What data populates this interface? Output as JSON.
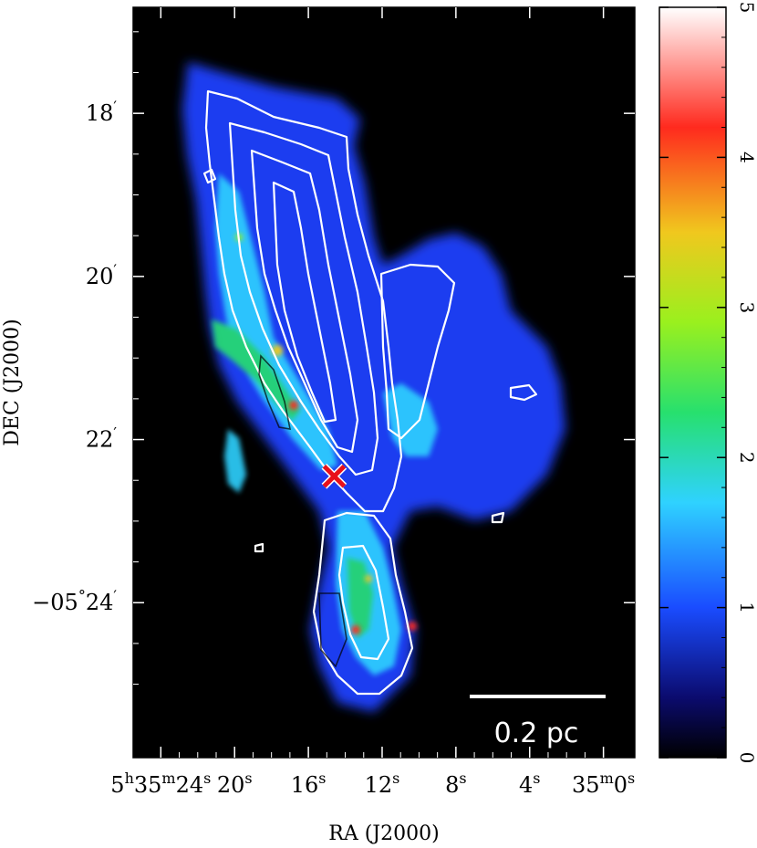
{
  "chart_data": {
    "type": "heatmap",
    "title": "",
    "xlabel": "RA (J2000)",
    "ylabel": "DEC (J2000)",
    "x_ticks": [
      {
        "value_sec": 24,
        "label_parts": [
          "5",
          "h",
          "35",
          "m",
          "24",
          "s"
        ]
      },
      {
        "value_sec": 20,
        "label_parts": [
          "20",
          "s"
        ]
      },
      {
        "value_sec": 16,
        "label_parts": [
          "16",
          "s"
        ]
      },
      {
        "value_sec": 12,
        "label_parts": [
          "12",
          "s"
        ]
      },
      {
        "value_sec": 8,
        "label_parts": [
          "8",
          "s"
        ]
      },
      {
        "value_sec": 4,
        "label_parts": [
          "4",
          "s"
        ]
      },
      {
        "value_sec": 0,
        "label_parts": [
          "35",
          "m",
          "0",
          "s"
        ]
      }
    ],
    "y_ticks": [
      {
        "value_arcmin": 18,
        "label_parts": [
          "18",
          "′"
        ]
      },
      {
        "value_arcmin": 20,
        "label_parts": [
          "20",
          "′"
        ]
      },
      {
        "value_arcmin": 22,
        "label_parts": [
          "22",
          "′"
        ]
      },
      {
        "value_arcmin": 24,
        "label_parts": [
          "−05",
          "°",
          "24",
          "′"
        ]
      }
    ],
    "xlim_sec": [
      25.5,
      -1.7
    ],
    "ylim_arcmin": [
      16.7,
      25.9
    ],
    "colorbar": {
      "range": [
        0,
        5
      ],
      "ticks": [
        "0",
        "1",
        "2",
        "3",
        "4",
        "5"
      ],
      "colormap_stops": [
        "#000000",
        "#0b0b6e",
        "#1a4cff",
        "#2fd2ff",
        "#27e06e",
        "#9af01e",
        "#f0c81e",
        "#ff2a1e",
        "#ffffff"
      ]
    },
    "marker": {
      "symbol": "x",
      "color": "#e8101a",
      "ra_sec": 14.6,
      "dec_arcmin": 22.45
    },
    "scale_bar": {
      "label": "0.2 pc",
      "color": "#ffffff"
    },
    "contours": {
      "color": "#ffffff"
    },
    "background_color": "#000000",
    "grid": false
  }
}
